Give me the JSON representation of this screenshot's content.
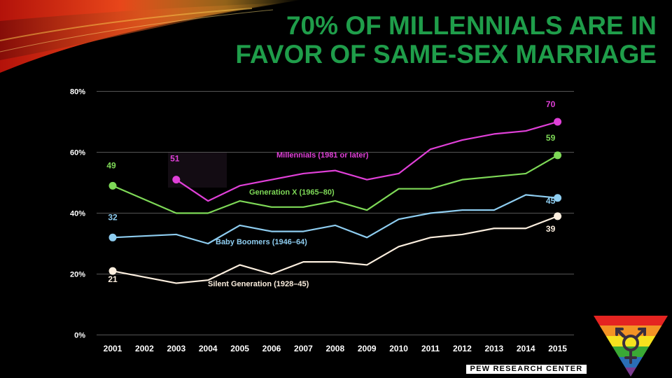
{
  "slide": {
    "title": "70% OF MILLENNIALS ARE IN FAVOR OF SAME-SEX MARRIAGE",
    "source": "PEW RESEARCH CENTER",
    "logo_icon": "transgender-symbol-rainbow-triangle-icon"
  },
  "colors": {
    "background": "#000000",
    "title": "#1f9d4a",
    "millennials": "#e040d8",
    "genx": "#7ed957",
    "boomers": "#8ecdf0",
    "silent": "#fbeede",
    "axis_text": "#ffffff",
    "grid": "#555555"
  },
  "chart_data": {
    "type": "line",
    "title": "70% OF MILLENNIALS ARE IN FAVOR OF SAME-SEX MARRIAGE",
    "xlabel": "",
    "ylabel": "",
    "ylim": [
      0,
      80
    ],
    "yticks": [
      "0%",
      "20%",
      "40%",
      "60%",
      "80%"
    ],
    "x": [
      "2001",
      "2002",
      "2003",
      "2004",
      "2005",
      "2006",
      "2007",
      "2008",
      "2009",
      "2010",
      "2011",
      "2012",
      "2013",
      "2014",
      "2015"
    ],
    "grid": true,
    "series": [
      {
        "name": "Millennials (1981 or later)",
        "color_key": "millennials",
        "values": [
          null,
          null,
          51,
          44,
          49,
          51,
          53,
          54,
          51,
          53,
          61,
          64,
          66,
          67,
          70
        ],
        "start_label": "51",
        "end_label": "70"
      },
      {
        "name": "Generation X (1965–80)",
        "color_key": "genx",
        "values": [
          49,
          null,
          40,
          40,
          44,
          42,
          42,
          44,
          41,
          48,
          48,
          51,
          52,
          53,
          59
        ],
        "start_label": "49",
        "end_label": "59"
      },
      {
        "name": "Baby Boomers (1946–64)",
        "color_key": "boomers",
        "values": [
          32,
          null,
          33,
          30,
          36,
          34,
          34,
          36,
          32,
          38,
          40,
          41,
          41,
          46,
          45
        ],
        "start_label": "32",
        "end_label": "45"
      },
      {
        "name": "Silent Generation (1928–45)",
        "color_key": "silent",
        "values": [
          21,
          null,
          17,
          18,
          23,
          20,
          24,
          24,
          23,
          29,
          32,
          33,
          35,
          35,
          39
        ],
        "start_label": "21",
        "end_label": "39"
      }
    ]
  }
}
